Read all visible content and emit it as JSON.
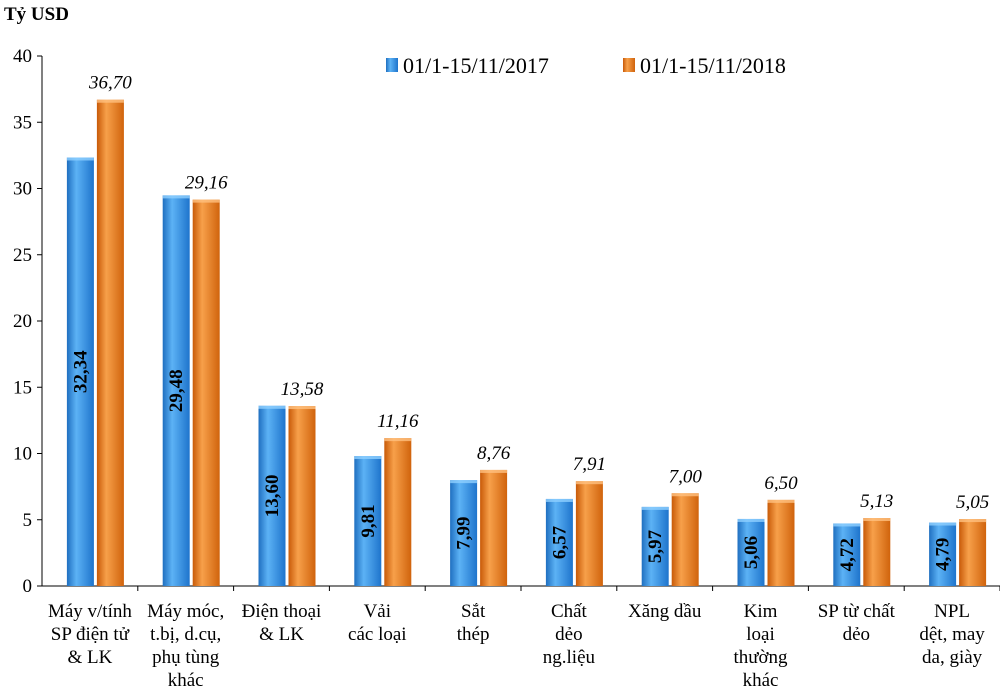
{
  "chart_data": {
    "type": "bar",
    "unit_label": "Tỷ USD",
    "ylim": [
      0,
      40
    ],
    "yticks": [
      "0",
      "5",
      "10",
      "15",
      "20",
      "25",
      "30",
      "35",
      "40"
    ],
    "categories": [
      [
        "Máy v/tính",
        "SP điện tử",
        "& LK"
      ],
      [
        "Máy móc,",
        "t.bị, d.cụ,",
        "phụ tùng",
        "khác"
      ],
      [
        "Điện thoại",
        "& LK"
      ],
      [
        "Vải",
        "các loại"
      ],
      [
        "Sắt",
        "thép"
      ],
      [
        "Chất",
        "dẻo",
        "ng.liệu"
      ],
      [
        "Xăng dầu"
      ],
      [
        "Kim",
        "loại",
        "thường",
        "khác"
      ],
      [
        "SP từ chất",
        "dẻo"
      ],
      [
        "NPL",
        "dệt, may",
        "da, giày"
      ]
    ],
    "series": [
      {
        "name": "01/1-15/11/2017",
        "color": "#2f8fe0",
        "values": [
          32.34,
          29.48,
          13.6,
          9.81,
          7.99,
          6.57,
          5.97,
          5.06,
          4.72,
          4.79
        ],
        "labels": [
          "32,34",
          "29,48",
          "13,60",
          "9,81",
          "7,99",
          "6,57",
          "5,97",
          "5,06",
          "4,72",
          "4,79"
        ]
      },
      {
        "name": "01/1-15/11/2018",
        "color": "#f07f1a",
        "values": [
          36.7,
          29.16,
          13.58,
          11.16,
          8.76,
          7.91,
          7.0,
          6.5,
          5.13,
          5.05
        ],
        "labels": [
          "36,70",
          "29,16",
          "13,58",
          "11,16",
          "8,76",
          "7,91",
          "7,00",
          "6,50",
          "5,13",
          "5,05"
        ]
      }
    ],
    "legend_position": "top-right",
    "grid": false
  }
}
